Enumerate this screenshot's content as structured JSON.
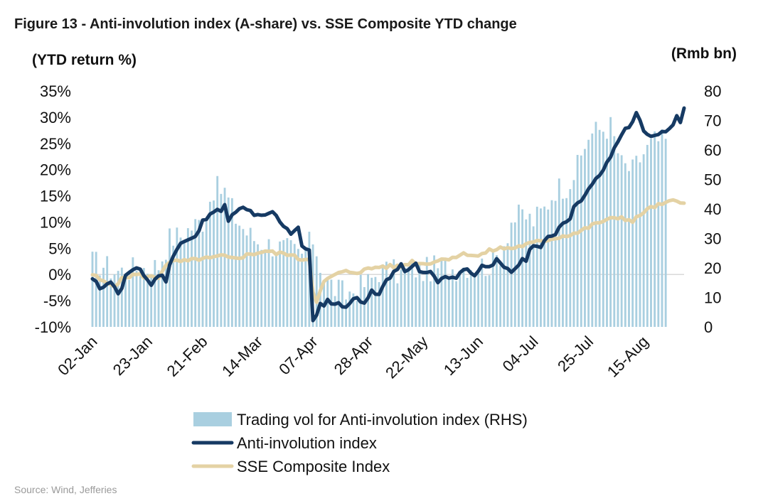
{
  "title": "Figure 13 - Anti-involution index (A-share) vs. SSE Composite YTD change",
  "source": "Source: Wind, Jefferies",
  "colors": {
    "volume": "#a9cfe0",
    "anti_involution": "#163a63",
    "sse": "#e4d2a4",
    "zero_line": "#d9d9d9"
  },
  "chart_data": {
    "type": "bar+line",
    "title": "Figure 13 - Anti-involution index (A-share) vs. SSE Composite YTD change",
    "left_axis": {
      "label": "(YTD return %)",
      "range": [
        -10,
        35
      ],
      "ticks": [
        -10,
        -5,
        0,
        5,
        10,
        15,
        20,
        25,
        30,
        35
      ],
      "tick_labels": [
        "-10%",
        "-5%",
        "0%",
        "5%",
        "10%",
        "15%",
        "20%",
        "25%",
        "30%",
        "35%"
      ]
    },
    "right_axis": {
      "label": "(Rmb bn)",
      "range": [
        0,
        80
      ],
      "ticks": [
        0,
        10,
        20,
        30,
        40,
        50,
        60,
        70,
        80
      ],
      "tick_labels": [
        "0",
        "10",
        "20",
        "30",
        "40",
        "50",
        "60",
        "70",
        "80"
      ]
    },
    "x_axis": {
      "start_index": 0,
      "end_index": 156,
      "tick_labels": [
        "02-Jan",
        "23-Jan",
        "21-Feb",
        "14-Mar",
        "07-Apr",
        "28-Apr",
        "22-May",
        "13-Jun",
        "04-Jul",
        "25-Jul",
        "15-Aug"
      ],
      "tick_positions": [
        0,
        15,
        30,
        45,
        60,
        75,
        90,
        105,
        120,
        135,
        150
      ]
    },
    "legend": {
      "position": "bottom-center",
      "items": [
        {
          "label": "Trading vol for Anti-involution index (RHS)",
          "kind": "bar",
          "color": "#a9cfe0"
        },
        {
          "label": "Anti-involution index",
          "kind": "line",
          "color": "#163a63"
        },
        {
          "label": "SSE Composite Index",
          "kind": "line",
          "color": "#e4d2a4"
        }
      ]
    },
    "series": [
      {
        "name": "Trading vol for Anti-involution index (RHS)",
        "axis": "right",
        "type": "bar",
        "keyframes": [
          [
            0,
            22
          ],
          [
            3,
            21
          ],
          [
            6,
            19
          ],
          [
            9,
            19
          ],
          [
            12,
            20
          ],
          [
            15,
            20
          ],
          [
            18,
            21
          ],
          [
            21,
            30
          ],
          [
            24,
            31
          ],
          [
            27,
            34
          ],
          [
            30,
            36
          ],
          [
            33,
            47
          ],
          [
            36,
            46
          ],
          [
            39,
            37
          ],
          [
            42,
            32
          ],
          [
            45,
            29
          ],
          [
            48,
            28
          ],
          [
            51,
            27
          ],
          [
            54,
            26
          ],
          [
            57,
            24
          ],
          [
            60,
            30
          ],
          [
            63,
            17
          ],
          [
            66,
            13
          ],
          [
            69,
            11
          ],
          [
            72,
            13
          ],
          [
            75,
            15
          ],
          [
            78,
            19
          ],
          [
            81,
            19
          ],
          [
            84,
            18
          ],
          [
            87,
            20
          ],
          [
            90,
            19
          ],
          [
            93,
            20
          ],
          [
            96,
            20
          ],
          [
            99,
            20
          ],
          [
            102,
            21
          ],
          [
            105,
            21
          ],
          [
            108,
            21
          ],
          [
            111,
            25
          ],
          [
            114,
            36
          ],
          [
            117,
            38
          ],
          [
            120,
            36
          ],
          [
            123,
            40
          ],
          [
            126,
            47
          ],
          [
            129,
            48
          ],
          [
            132,
            54
          ],
          [
            135,
            65
          ],
          [
            138,
            67
          ],
          [
            141,
            68
          ],
          [
            144,
            55
          ],
          [
            147,
            53
          ],
          [
            150,
            59
          ],
          [
            153,
            63
          ],
          [
            156,
            63
          ]
        ]
      },
      {
        "name": "Anti-involution index",
        "axis": "left",
        "type": "line",
        "keyframes": [
          [
            0,
            -1
          ],
          [
            2,
            -2.5
          ],
          [
            4,
            -1.5
          ],
          [
            6,
            -2
          ],
          [
            7,
            -3.5
          ],
          [
            8,
            -3
          ],
          [
            9,
            0
          ],
          [
            11,
            0.5
          ],
          [
            13,
            1
          ],
          [
            14,
            0
          ],
          [
            16,
            -2
          ],
          [
            18,
            0
          ],
          [
            20,
            -1
          ],
          [
            22,
            4
          ],
          [
            24,
            6
          ],
          [
            26,
            6.5
          ],
          [
            28,
            7
          ],
          [
            30,
            10
          ],
          [
            32,
            12
          ],
          [
            34,
            12
          ],
          [
            36,
            13
          ],
          [
            37,
            10
          ],
          [
            39,
            12
          ],
          [
            41,
            12.5
          ],
          [
            43,
            12
          ],
          [
            45,
            11
          ],
          [
            47,
            11
          ],
          [
            49,
            12
          ],
          [
            50,
            11
          ],
          [
            52,
            9.5
          ],
          [
            54,
            8
          ],
          [
            56,
            9
          ],
          [
            57,
            5
          ],
          [
            59,
            5
          ],
          [
            60,
            -9
          ],
          [
            61,
            -8
          ],
          [
            62,
            -6
          ],
          [
            64,
            -5
          ],
          [
            66,
            -5.5
          ],
          [
            68,
            -6
          ],
          [
            70,
            -5.5
          ],
          [
            72,
            -4.5
          ],
          [
            74,
            -5
          ],
          [
            76,
            -3.5
          ],
          [
            78,
            -4
          ],
          [
            80,
            -1
          ],
          [
            82,
            0.5
          ],
          [
            84,
            1.5
          ],
          [
            86,
            0.5
          ],
          [
            88,
            2
          ],
          [
            90,
            0
          ],
          [
            92,
            0.5
          ],
          [
            94,
            -1.5
          ],
          [
            96,
            -0.5
          ],
          [
            98,
            -1
          ],
          [
            100,
            0.5
          ],
          [
            102,
            1
          ],
          [
            104,
            0
          ],
          [
            106,
            1.5
          ],
          [
            108,
            2
          ],
          [
            110,
            2.5
          ],
          [
            112,
            1
          ],
          [
            114,
            0.5
          ],
          [
            116,
            2
          ],
          [
            118,
            3
          ],
          [
            120,
            6
          ],
          [
            122,
            5
          ],
          [
            124,
            7
          ],
          [
            126,
            8
          ],
          [
            128,
            10
          ],
          [
            130,
            11
          ],
          [
            132,
            14
          ],
          [
            134,
            15
          ],
          [
            136,
            17
          ],
          [
            138,
            19
          ],
          [
            140,
            21
          ],
          [
            142,
            24
          ],
          [
            144,
            27
          ],
          [
            146,
            28
          ],
          [
            148,
            31
          ],
          [
            150,
            27
          ],
          [
            152,
            26
          ],
          [
            154,
            27
          ],
          [
            156,
            27
          ],
          [
            158,
            29
          ],
          [
            159,
            30
          ],
          [
            160,
            29
          ],
          [
            161,
            32
          ]
        ]
      },
      {
        "name": "SSE Composite Index",
        "axis": "left",
        "type": "line",
        "keyframes": [
          [
            0,
            0
          ],
          [
            3,
            -1.5
          ],
          [
            6,
            -2
          ],
          [
            9,
            -0.5
          ],
          [
            12,
            0
          ],
          [
            15,
            -0.5
          ],
          [
            18,
            -0.5
          ],
          [
            20,
            2
          ],
          [
            23,
            2.5
          ],
          [
            26,
            2.5
          ],
          [
            29,
            3
          ],
          [
            32,
            3
          ],
          [
            35,
            3.5
          ],
          [
            38,
            3
          ],
          [
            41,
            3.5
          ],
          [
            44,
            4
          ],
          [
            47,
            4.5
          ],
          [
            50,
            4
          ],
          [
            53,
            4
          ],
          [
            56,
            3
          ],
          [
            59,
            3
          ],
          [
            60,
            -3
          ],
          [
            61,
            -5
          ],
          [
            63,
            -1.5
          ],
          [
            66,
            0
          ],
          [
            69,
            0.5
          ],
          [
            72,
            0.5
          ],
          [
            75,
            1
          ],
          [
            78,
            1.5
          ],
          [
            81,
            1.5
          ],
          [
            84,
            1.5
          ],
          [
            87,
            2.5
          ],
          [
            90,
            2
          ],
          [
            93,
            2.5
          ],
          [
            96,
            3
          ],
          [
            99,
            3.5
          ],
          [
            102,
            4
          ],
          [
            105,
            3.5
          ],
          [
            108,
            4.5
          ],
          [
            111,
            5
          ],
          [
            114,
            5
          ],
          [
            117,
            5.5
          ],
          [
            120,
            6
          ],
          [
            123,
            6.5
          ],
          [
            126,
            7
          ],
          [
            129,
            7.5
          ],
          [
            132,
            8
          ],
          [
            135,
            9
          ],
          [
            138,
            10
          ],
          [
            141,
            10.5
          ],
          [
            144,
            11
          ],
          [
            147,
            10
          ],
          [
            150,
            12
          ],
          [
            153,
            13
          ],
          [
            156,
            13.5
          ],
          [
            158,
            14
          ],
          [
            161,
            14
          ]
        ]
      }
    ]
  }
}
